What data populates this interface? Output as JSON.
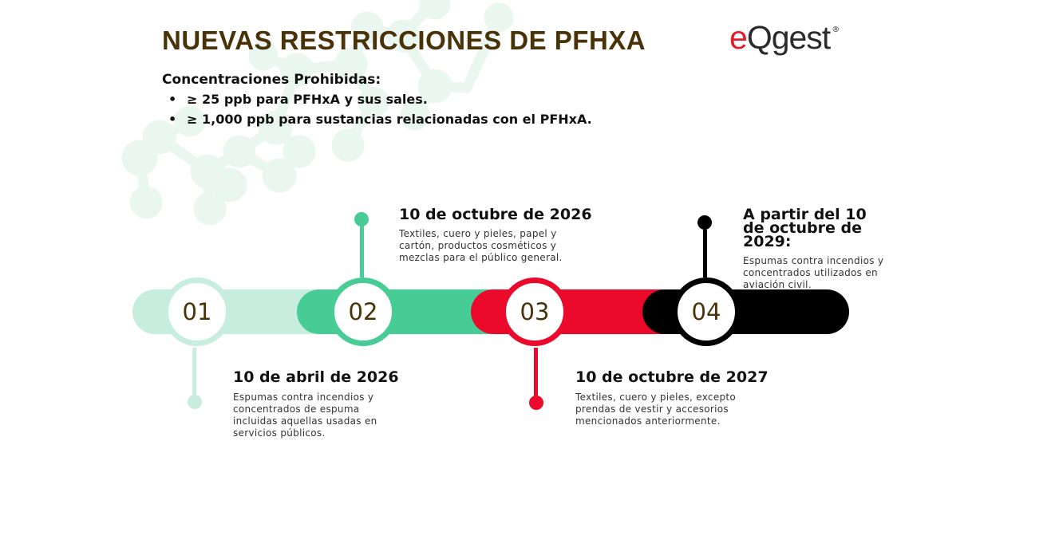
{
  "title": "NUEVAS RESTRICCIONES DE PFHXA",
  "logo": {
    "e": "e",
    "rest": "Qgest",
    "reg": "®"
  },
  "concentrations": {
    "heading": "Concentraciones Prohibidas:",
    "items": [
      "≥ 25 ppb para PFHxA y sus sales.",
      "≥ 1,000 ppb para sustancias relacionadas con el PFHxA."
    ]
  },
  "milestones": [
    {
      "number": "01",
      "date": "10 de abril de 2026",
      "description": "Espumas contra incendios y concentrados de espuma incluidas aquellas usadas en servicios públicos.",
      "color": "#c6eddd"
    },
    {
      "number": "02",
      "date": "10 de octubre de 2026",
      "description": "Textiles, cuero y pieles, papel y cartón, productos cosméticos y mezclas para el público general.",
      "color": "#47cc95"
    },
    {
      "number": "03",
      "date": "10 de octubre de 2027",
      "description": "Textiles, cuero y pieles, excepto prendas de vestir y accesorios mencionados anteriormente.",
      "color": "#eb0a2b"
    },
    {
      "number": "04",
      "date": "A partir del 10 de octubre de 2029:",
      "description": "Espumas contra incendios y concentrados utilizados en aviación civil.",
      "color": "#000000"
    }
  ],
  "colors": {
    "title": "#4a3208",
    "molecule": "#e8f6ef",
    "logo_accent": "#e11d2e"
  }
}
